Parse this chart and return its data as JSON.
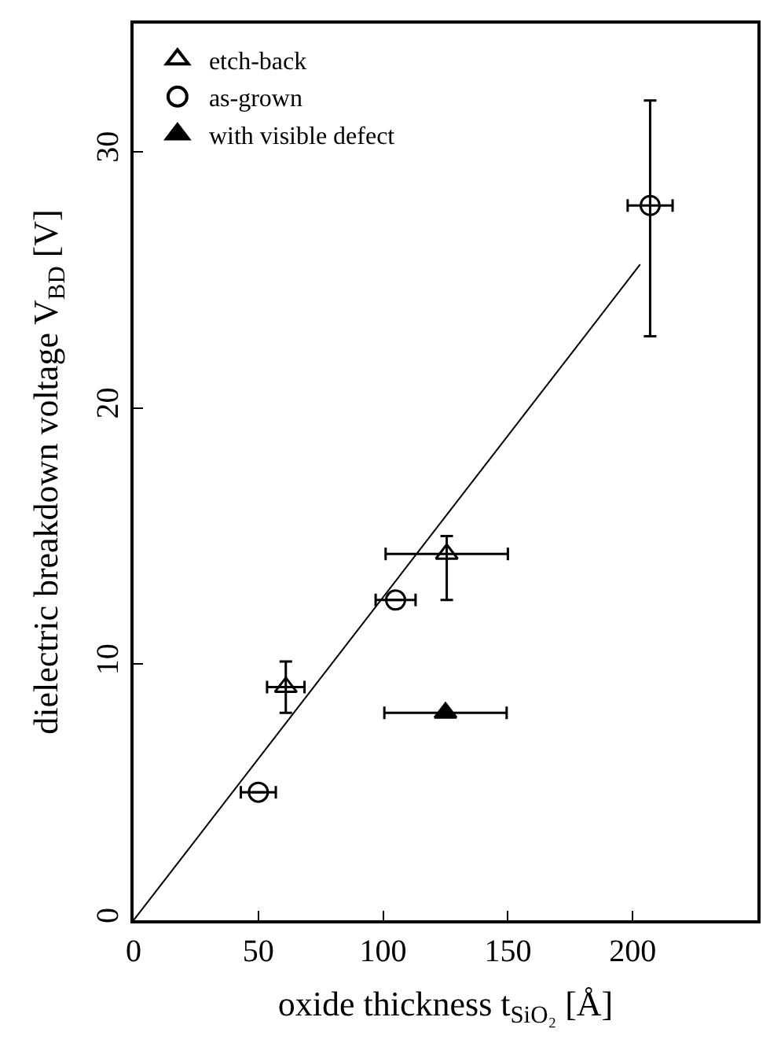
{
  "chart_data": {
    "type": "scatter",
    "xlabel": "oxide thickness t$_{SiO₂}$ [Å]",
    "ylabel": "dielectric breakdown voltage V$_{BD}$ [V]",
    "xlim": [
      0,
      250
    ],
    "xticks": [
      0,
      50,
      100,
      150,
      200
    ],
    "ylim": [
      0,
      35
    ],
    "yticks": [
      0,
      10,
      20,
      30
    ],
    "legend": "top left",
    "series": [
      {
        "name": "etch-back",
        "color": "#000000",
        "marker": "triangle-open",
        "x": [
          61,
          125.5
        ],
        "values": [
          9.1,
          14.3
        ],
        "errors": [
          1.0,
          [
            12.5,
            15.0
          ]
        ],
        "xerrors": [
          7.5,
          24.5
        ]
      },
      {
        "name": "as-grown",
        "color": "#000000",
        "marker": "circle-open",
        "x": [
          50,
          105,
          207
        ],
        "values": [
          5.0,
          12.5,
          27.9
        ],
        "errors": [
          null,
          null,
          [
            22.8,
            32.0
          ]
        ],
        "xerrors": [
          7,
          8,
          9
        ]
      },
      {
        "name": "with visible defect",
        "color": "#000000",
        "marker": "triangle",
        "x": [
          125
        ],
        "values": [
          8.1
        ],
        "xerrors": [
          24.5
        ]
      },
      {
        "type": "line",
        "color": "#000000",
        "line_style": "solid",
        "marker": "none",
        "x": [
          0,
          203
        ],
        "values": [
          0,
          25.6
        ]
      }
    ]
  }
}
